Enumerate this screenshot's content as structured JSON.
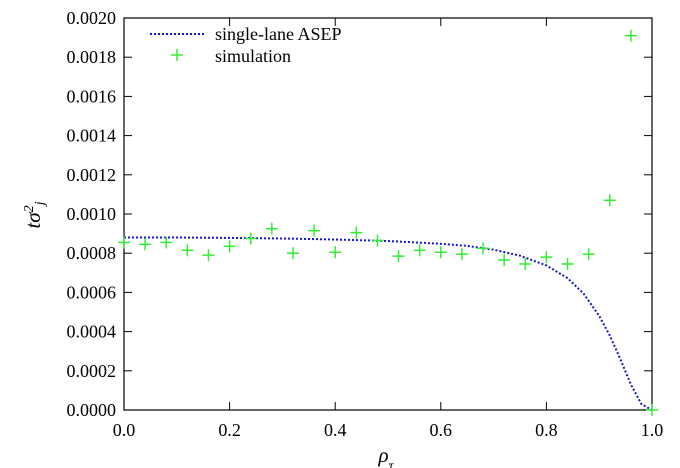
{
  "chart_data": {
    "type": "scatter",
    "xlabel": "ρτ",
    "ylabel": "tσ²j",
    "xlim": [
      0.0,
      1.0
    ],
    "ylim": [
      0.0,
      0.002
    ],
    "x_ticks": [
      0.0,
      0.2,
      0.4,
      0.6,
      0.8,
      1.0
    ],
    "x_tick_labels": [
      "0.0",
      "0.2",
      "0.4",
      "0.6",
      "0.8",
      "1.0"
    ],
    "y_ticks": [
      0.0,
      0.0002,
      0.0004,
      0.0006,
      0.0008,
      0.001,
      0.0012,
      0.0014,
      0.0016,
      0.0018,
      0.002
    ],
    "y_tick_labels": [
      "0.0000",
      "0.0002",
      "0.0004",
      "0.0006",
      "0.0008",
      "0.0010",
      "0.0012",
      "0.0014",
      "0.0016",
      "0.0018",
      "0.0020"
    ],
    "grid": false,
    "legend_position": "top-left",
    "series": [
      {
        "name": "single-lane ASEP",
        "style": "dotted-line",
        "color": "#1515d0",
        "x": [
          0.0,
          0.1,
          0.2,
          0.3,
          0.4,
          0.5,
          0.6,
          0.65,
          0.7,
          0.75,
          0.8,
          0.84,
          0.87,
          0.9,
          0.92,
          0.94,
          0.96,
          0.98,
          1.0
        ],
        "y": [
          0.00088,
          0.00088,
          0.000878,
          0.000875,
          0.00087,
          0.000862,
          0.000848,
          0.000837,
          0.000818,
          0.000787,
          0.000738,
          0.000673,
          0.000595,
          0.00048,
          0.00038,
          0.00026,
          0.00013,
          3e-05,
          0.0
        ]
      },
      {
        "name": "simulation",
        "style": "plus-marker",
        "color": "#33ee33",
        "x": [
          0.0,
          0.04,
          0.08,
          0.12,
          0.16,
          0.2,
          0.24,
          0.28,
          0.32,
          0.36,
          0.4,
          0.44,
          0.48,
          0.52,
          0.56,
          0.6,
          0.64,
          0.68,
          0.72,
          0.76,
          0.8,
          0.84,
          0.88,
          0.92,
          0.96,
          1.0
        ],
        "y": [
          0.000855,
          0.000845,
          0.000855,
          0.000815,
          0.00079,
          0.000835,
          0.000875,
          0.000925,
          0.0008,
          0.000915,
          0.000805,
          0.000905,
          0.000865,
          0.000785,
          0.000815,
          0.000805,
          0.000795,
          0.000825,
          0.000765,
          0.000745,
          0.00078,
          0.000745,
          0.000795,
          0.00107,
          0.00191,
          0.0
        ]
      }
    ]
  }
}
